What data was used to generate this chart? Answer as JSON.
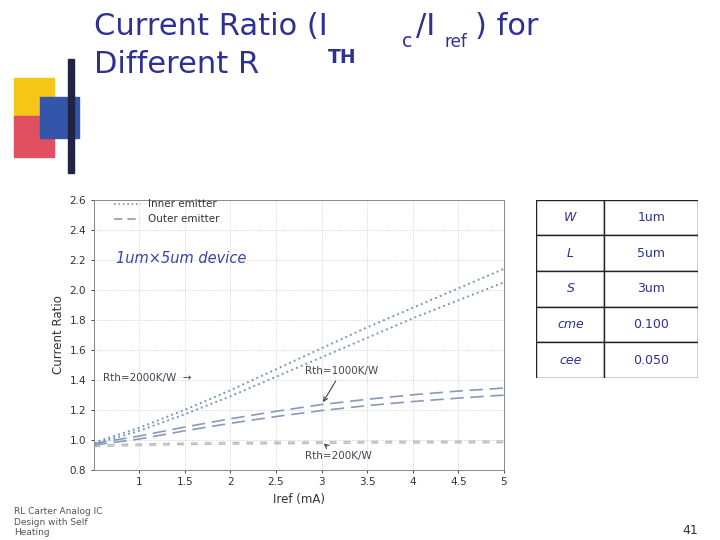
{
  "xlabel": "Iref (mA)",
  "ylabel": "Current Ratio",
  "xlim": [
    0.5,
    5.0
  ],
  "ylim": [
    0.8,
    2.6
  ],
  "yticks": [
    0.8,
    1.0,
    1.2,
    1.4,
    1.6,
    1.8,
    2.0,
    2.2,
    2.4,
    2.6
  ],
  "xticks": [
    1.0,
    1.5,
    2.0,
    2.5,
    3.0,
    3.5,
    4.0,
    4.5,
    5.0
  ],
  "bg_color": "#ffffff",
  "title_color": "#2e3192",
  "device_label": "1um×5um device",
  "legend_inner": "Inner emitter",
  "legend_outer": "Outer emitter",
  "table_keys": [
    "W",
    "L",
    "S",
    "cme",
    "cee"
  ],
  "table_vals": [
    "1um",
    "5um",
    "3um",
    "0.100",
    "0.050"
  ],
  "iref": [
    0.5,
    1.0,
    1.5,
    2.0,
    2.5,
    3.0,
    3.5,
    4.0,
    4.5,
    5.0
  ],
  "inner_rth200": [
    0.965,
    0.972,
    0.978,
    0.982,
    0.985,
    0.987,
    0.989,
    0.99,
    0.991,
    0.992
  ],
  "outer_rth200": [
    0.955,
    0.962,
    0.968,
    0.971,
    0.974,
    0.976,
    0.978,
    0.979,
    0.98,
    0.981
  ],
  "inner_rth1000": [
    0.975,
    1.025,
    1.085,
    1.14,
    1.19,
    1.235,
    1.27,
    1.3,
    1.325,
    1.345
  ],
  "outer_rth1000": [
    0.965,
    1.005,
    1.06,
    1.11,
    1.155,
    1.195,
    1.228,
    1.255,
    1.278,
    1.298
  ],
  "inner_rth2000": [
    0.98,
    1.08,
    1.2,
    1.33,
    1.47,
    1.61,
    1.75,
    1.88,
    2.01,
    2.14
  ],
  "outer_rth2000": [
    0.97,
    1.06,
    1.17,
    1.29,
    1.42,
    1.55,
    1.68,
    1.81,
    1.93,
    2.05
  ]
}
